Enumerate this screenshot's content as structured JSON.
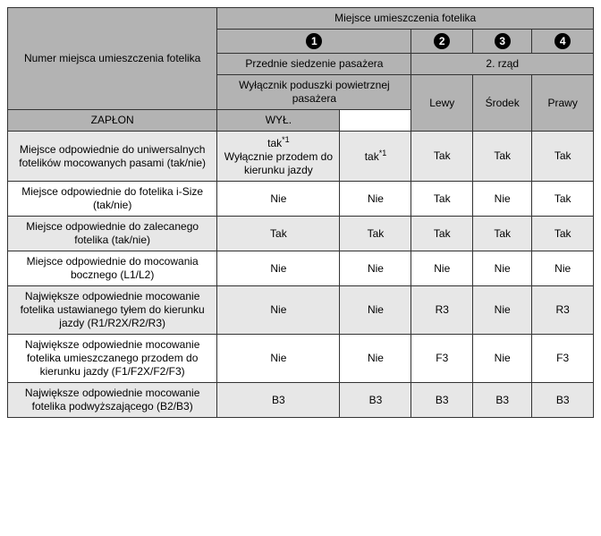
{
  "header": {
    "topTitle": "Miejsce umieszczenia fotelika",
    "rowTitle": "Numer miejsca umieszczenia fotelika",
    "circles": [
      "1",
      "2",
      "3",
      "4"
    ],
    "frontSeat": "Przednie siedzenie pasażera",
    "secondRow": "2. rząd",
    "airbagSwitch": "Wyłącznik poduszki powietrznej pasażera",
    "left": "Lewy",
    "center": "Środek",
    "right": "Prawy",
    "on": "ZAPŁON",
    "off": "WYŁ."
  },
  "rows": [
    {
      "label": "Miejsce odpowiednie do uniwersalnych fotelików mocowanych pasami (tak/nie)",
      "cells": [
        "tak*1 — Wyłącznie przodem do kierunku jazdy",
        "tak*1",
        "Tak",
        "Tak",
        "Tak"
      ]
    },
    {
      "label": "Miejsce odpowiednie do fotelika i-Size (tak/nie)",
      "cells": [
        "Nie",
        "Nie",
        "Tak",
        "Nie",
        "Tak"
      ]
    },
    {
      "label": "Miejsce odpowiednie do zalecanego fotelika (tak/nie)",
      "cells": [
        "Tak",
        "Tak",
        "Tak",
        "Tak",
        "Tak"
      ]
    },
    {
      "label": "Miejsce odpowiednie do mocowania bocznego (L1/L2)",
      "cells": [
        "Nie",
        "Nie",
        "Nie",
        "Nie",
        "Nie"
      ]
    },
    {
      "label": "Największe odpowiednie mocowanie fotelika ustawianego tyłem do kierunku jazdy (R1/R2X/R2/R3)",
      "cells": [
        "Nie",
        "Nie",
        "R3",
        "Nie",
        "R3"
      ]
    },
    {
      "label": "Największe odpowiednie mocowanie fotelika umieszczanego przodem do kierunku jazdy (F1/F2X/F2/F3)",
      "cells": [
        "Nie",
        "Nie",
        "F3",
        "Nie",
        "F3"
      ]
    },
    {
      "label": "Największe odpowiednie mocowanie fotelika podwyższającego (B2/B3)",
      "cells": [
        "B3",
        "B3",
        "B3",
        "B3",
        "B3"
      ]
    }
  ],
  "special": {
    "cell0_html": "tak<sup>*1</sup><br>Wyłącznie przodem do kierunku jazdy",
    "cell1_html": "tak<sup>*1</sup>"
  }
}
